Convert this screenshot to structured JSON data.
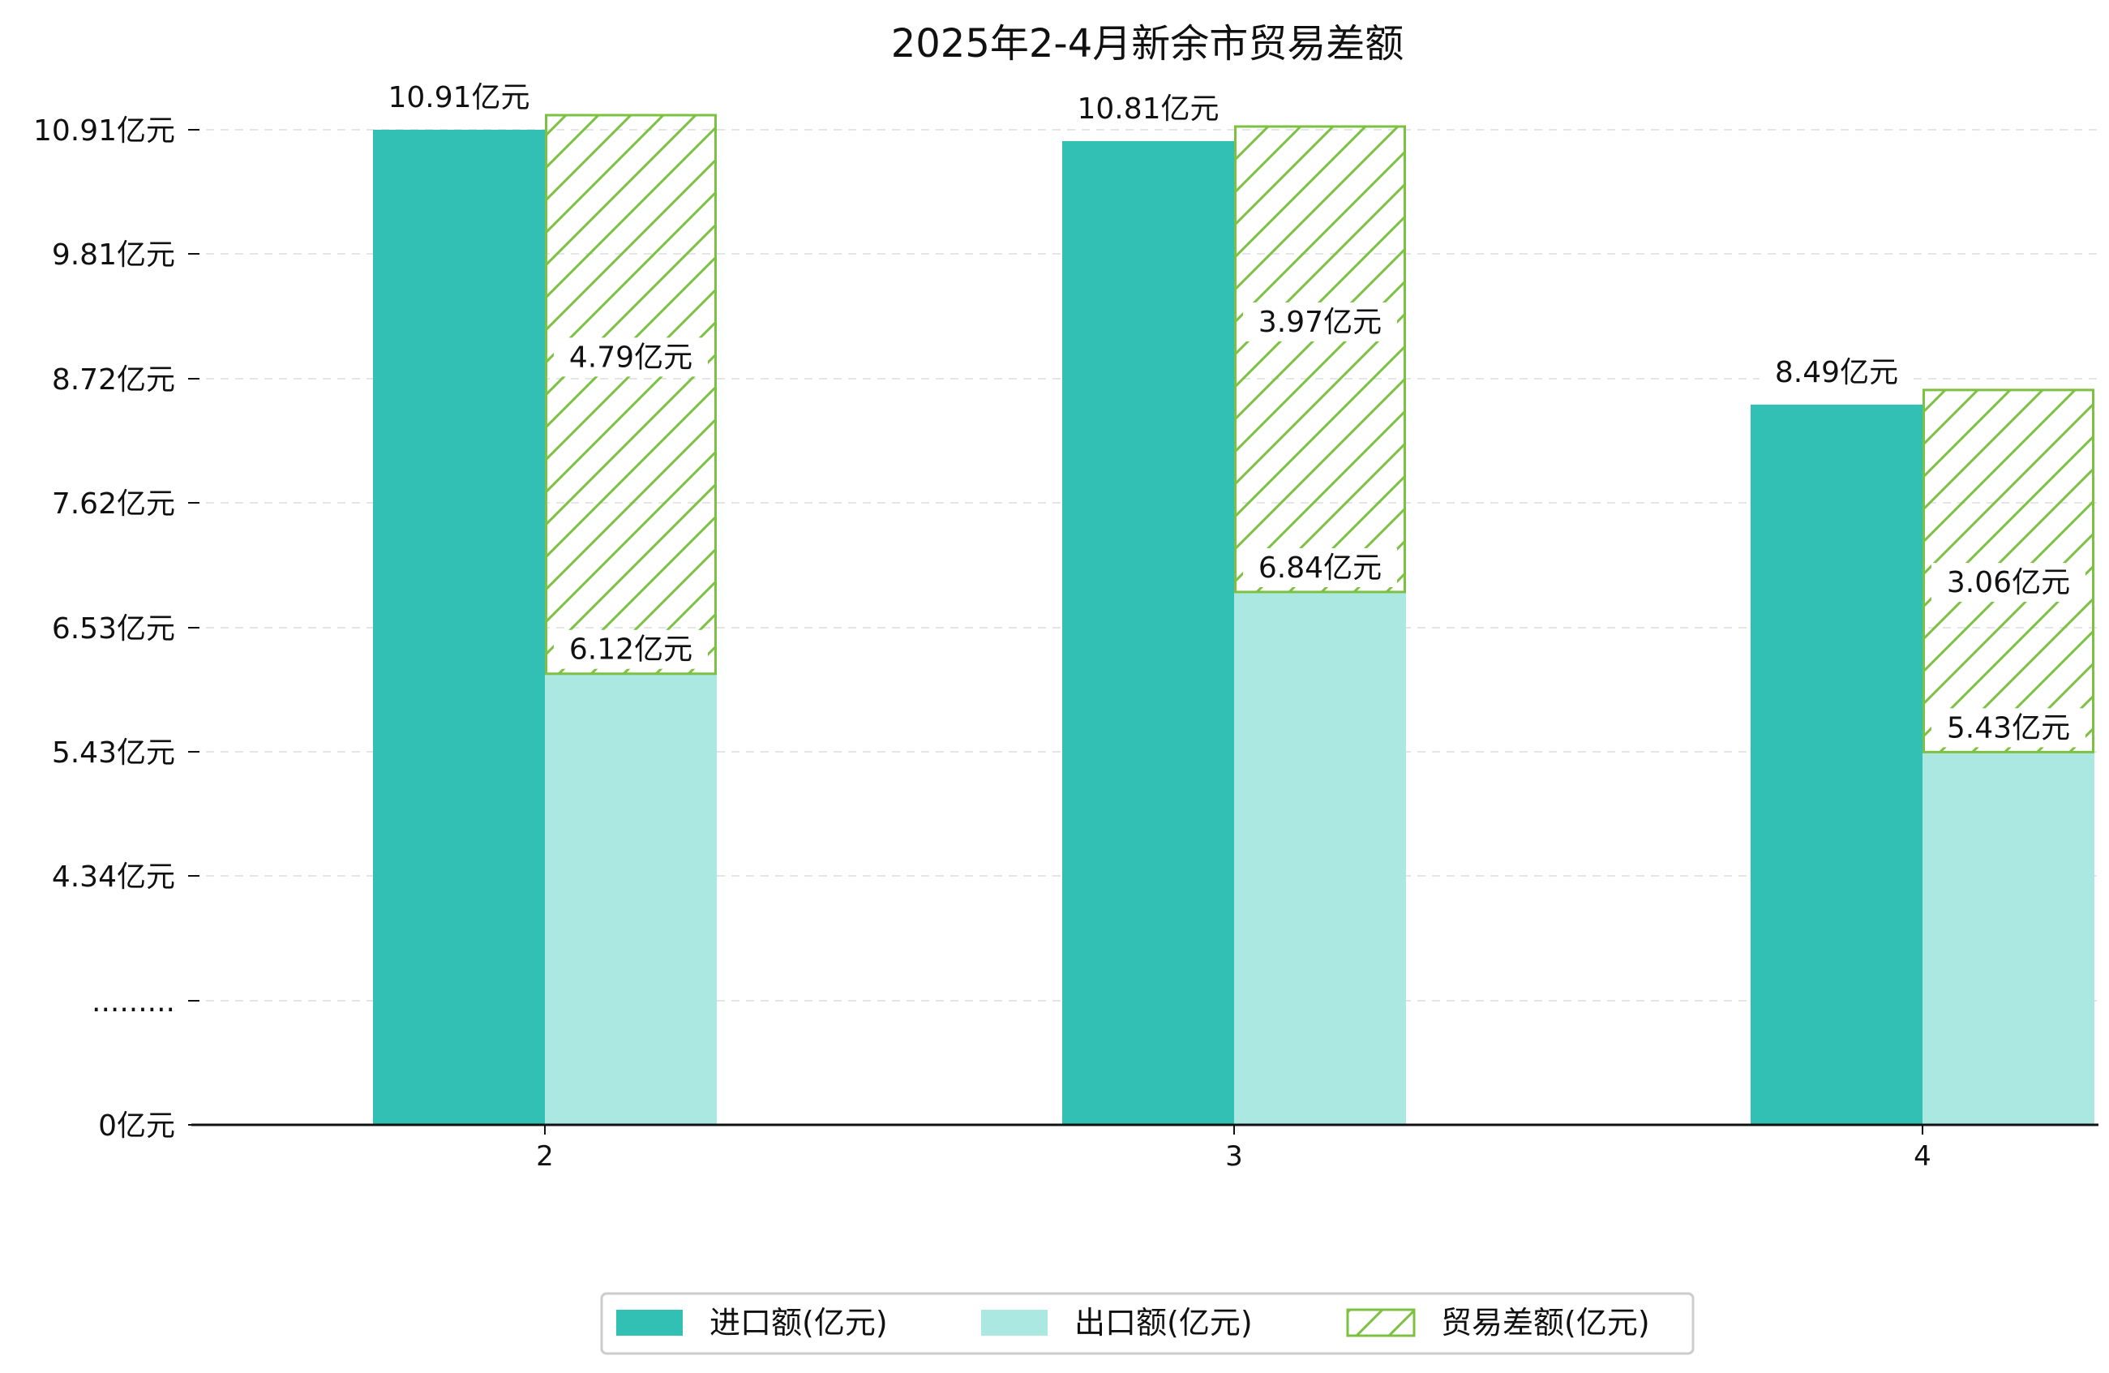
{
  "chart_data": {
    "type": "bar",
    "title": "2025年2-4月新余市贸易差额",
    "categories": [
      "2",
      "3",
      "4"
    ],
    "series": [
      {
        "name": "进口额(亿元)",
        "values": [
          10.91,
          10.81,
          8.49
        ],
        "color": "#31c0b3"
      },
      {
        "name": "出口额(亿元)",
        "values": [
          6.12,
          6.84,
          5.43
        ],
        "color": "#abe8e2"
      },
      {
        "name": "贸易差额(亿元)",
        "values": [
          4.79,
          3.97,
          3.06
        ],
        "color": "#7dc142",
        "style": "hatched",
        "stacked_on": "出口额(亿元)"
      }
    ],
    "unit": "亿元",
    "y_axis_note": "broken axis",
    "y_ticks": [
      {
        "label": "0亿元",
        "value": 0
      },
      {
        "label": ".........",
        "value": null
      },
      {
        "label": "4.34亿元",
        "value": 4.34
      },
      {
        "label": "5.43亿元",
        "value": 5.43
      },
      {
        "label": "6.53亿元",
        "value": 6.53
      },
      {
        "label": "7.62亿元",
        "value": 7.62
      },
      {
        "label": "8.72亿元",
        "value": 8.72
      },
      {
        "label": "9.81亿元",
        "value": 9.81
      },
      {
        "label": "10.91亿元",
        "value": 10.91
      }
    ],
    "labels": {
      "import": [
        "10.91亿元",
        "10.81亿元",
        "8.49亿元"
      ],
      "export": [
        "6.12亿元",
        "6.84亿元",
        "5.43亿元"
      ],
      "balance": [
        "4.79亿元",
        "3.97亿元",
        "3.06亿元"
      ]
    },
    "legend_position": "bottom-center",
    "grid": true
  }
}
